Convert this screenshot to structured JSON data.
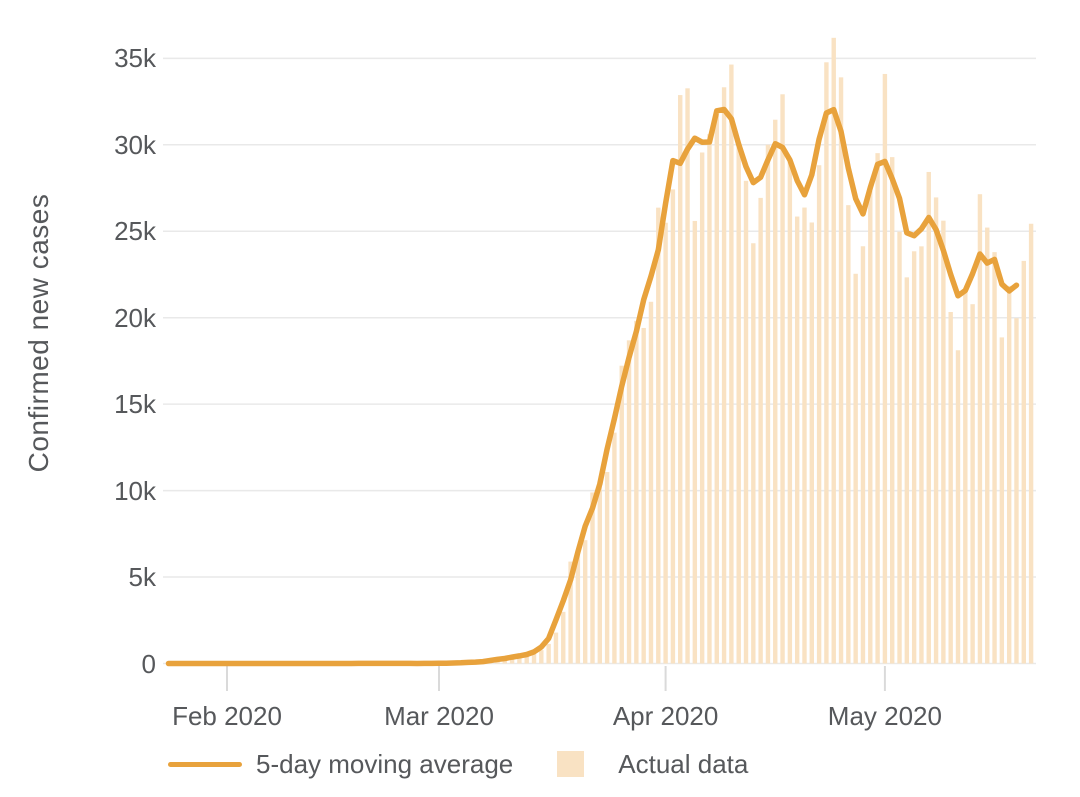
{
  "chart_data": {
    "type": "bar",
    "title": "",
    "xlabel": "",
    "ylabel": "Confirmed new cases",
    "grid": "horizontal",
    "legend_position": "bottom",
    "ylim": [
      0,
      36500
    ],
    "y_ticks": [
      {
        "label": "0",
        "value": 0
      },
      {
        "label": "5k",
        "value": 5000
      },
      {
        "label": "10k",
        "value": 10000
      },
      {
        "label": "15k",
        "value": 15000
      },
      {
        "label": "20k",
        "value": 20000
      },
      {
        "label": "25k",
        "value": 25000
      },
      {
        "label": "30k",
        "value": 30000
      },
      {
        "label": "35k",
        "value": 35000
      }
    ],
    "x_ticks": [
      {
        "label": "Feb 2020",
        "day_index": 10
      },
      {
        "label": "Mar 2020",
        "day_index": 39
      },
      {
        "label": "Apr 2020",
        "day_index": 70
      },
      {
        "label": "May 2020",
        "day_index": 100
      }
    ],
    "x_start_date_shown_as": "days before Feb 2020 tick: 10",
    "series": [
      {
        "name": "5-day moving average",
        "type": "line",
        "color": "#E8A23C",
        "derived_from": "Actual data",
        "ma_window": 5,
        "ma_mode": "centered"
      },
      {
        "name": "Actual data",
        "type": "bar",
        "color": "#F9E2C3",
        "values": [
          1,
          0,
          1,
          0,
          3,
          0,
          0,
          0,
          1,
          1,
          1,
          0,
          3,
          0,
          1,
          0,
          0,
          0,
          0,
          0,
          1,
          0,
          1,
          0,
          0,
          0,
          0,
          0,
          0,
          1,
          19,
          0,
          0,
          18,
          0,
          6,
          1,
          1,
          6,
          7,
          23,
          19,
          33,
          77,
          59,
          117,
          119,
          187,
          382,
          371,
          388,
          516,
          548,
          773,
          1133,
          1789,
          2988,
          5894,
          6367,
          7134,
          9893,
          10459,
          11075,
          13355,
          17224,
          18691,
          19821,
          19408,
          20921,
          26365,
          25493,
          27421,
          32876,
          33267,
          25595,
          29556,
          30613,
          31709,
          33327,
          34641,
          29916,
          27917,
          24306,
          26930,
          30003,
          31451,
          32922,
          29002,
          25850,
          26371,
          25507,
          28819,
          34772,
          36188,
          33901,
          26509,
          22541,
          24132,
          27326,
          29517,
          34098,
          29288,
          24972,
          22334,
          23841,
          24128,
          28430,
          26957,
          25612,
          20329,
          18117,
          21491,
          20782,
          27143,
          25212,
          23792,
          18862,
          21841,
          19970,
          23285,
          25434
        ]
      }
    ],
    "colors": {
      "line": "#E8A23C",
      "bar": "#F9E2C3",
      "text": "#56585B",
      "gridline": "#E9E9E9",
      "tick": "#DADADA"
    }
  },
  "legend": {
    "line_label": "5-day moving average",
    "bar_label": "Actual data"
  }
}
